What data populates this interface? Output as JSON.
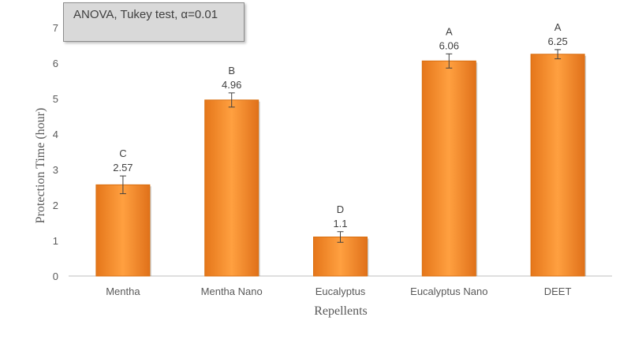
{
  "annotation": "ANOVA, Tukey test, α=0.01",
  "chart_data": {
    "type": "bar",
    "title": "",
    "xlabel": "Repellents",
    "ylabel": "Protection Time (hour)",
    "ylim": [
      0,
      7
    ],
    "yticks": [
      0,
      1,
      2,
      3,
      4,
      5,
      6,
      7
    ],
    "categories": [
      "Mentha",
      "Mentha Nano",
      "Eucalyptus",
      "Eucalyptus Nano",
      "DEET"
    ],
    "values": [
      2.57,
      4.96,
      1.1,
      6.06,
      6.25
    ],
    "value_labels": [
      "2.57",
      "4.96",
      "1.1",
      "6.06",
      "6.25"
    ],
    "error": [
      0.25,
      0.2,
      0.15,
      0.2,
      0.13
    ],
    "groups": [
      "C",
      "B",
      "D",
      "A",
      "A"
    ],
    "grid": false,
    "legend": "none",
    "bar_color": "#f28c28",
    "bar_color_dark": "#d96f10"
  }
}
